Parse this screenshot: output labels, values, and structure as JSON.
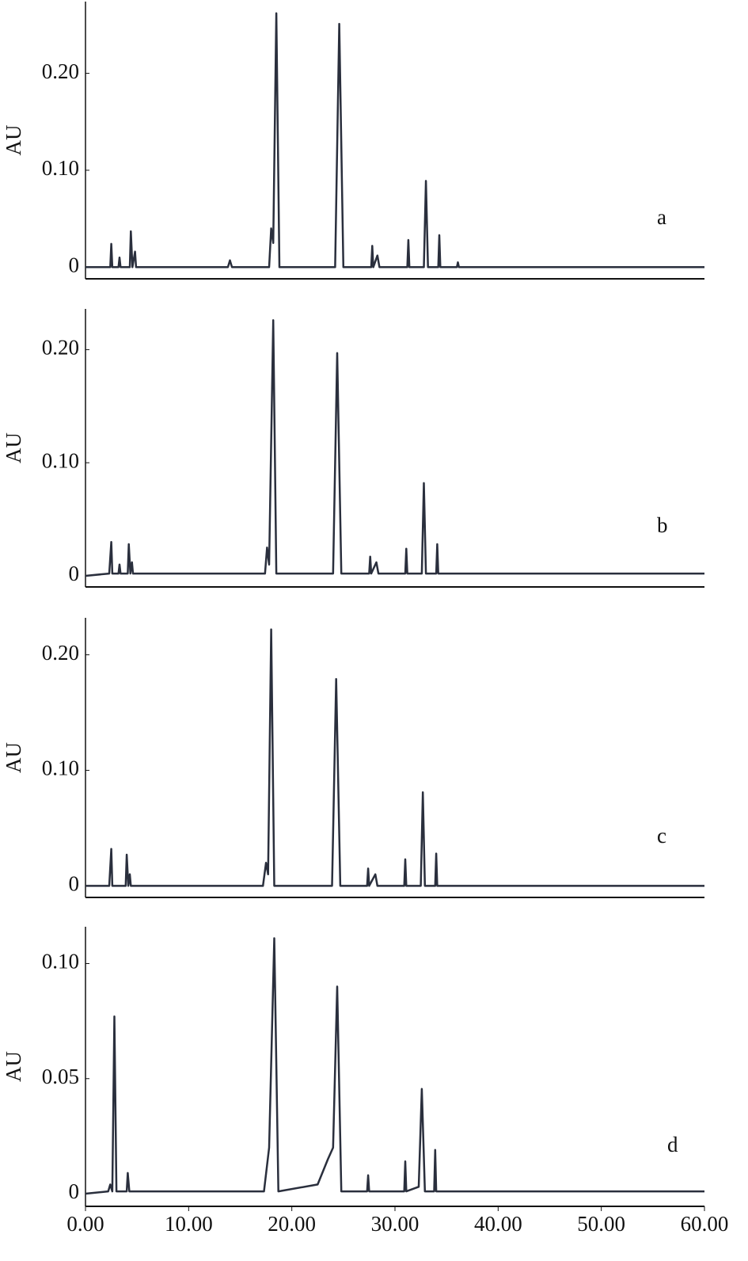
{
  "chart_data": [
    {
      "type": "line",
      "y_label": "AU",
      "annotation": "a",
      "color": "#2a2f3d",
      "xlim": [
        0,
        60
      ],
      "ylim": [
        -0.012,
        0.274
      ],
      "yticks": [
        0,
        {
          "value": 0.1,
          "label": "0.10"
        },
        {
          "value": 0.2,
          "label": "0.20"
        }
      ],
      "x": [
        0,
        2.4,
        2.5,
        2.6,
        3.2,
        3.3,
        3.4,
        4.3,
        4.4,
        4.55,
        4.8,
        4.9,
        13.8,
        14,
        14.2,
        17.8,
        18.0,
        18.2,
        18.5,
        18.8,
        24.2,
        24.6,
        25,
        27.7,
        27.8,
        27.9,
        28.3,
        28.5,
        31.2,
        31.3,
        31.4,
        32.8,
        33.0,
        33.2,
        34.2,
        34.3,
        34.4,
        36,
        36.1,
        36.2,
        60
      ],
      "values": [
        0,
        0,
        0.024,
        0,
        0,
        0.01,
        0,
        0,
        0.037,
        0,
        0.016,
        0,
        0,
        0.007,
        0,
        0,
        0.04,
        0.025,
        0.262,
        0,
        0,
        0.251,
        0,
        0,
        0.022,
        0,
        0.012,
        0,
        0,
        0.028,
        0,
        0,
        0.089,
        0,
        0,
        0.033,
        0,
        0,
        0.005,
        0,
        0
      ]
    },
    {
      "type": "line",
      "y_label": "AU",
      "annotation": "b",
      "color": "#2a2f3d",
      "xlim": [
        0,
        60
      ],
      "ylim": [
        -0.0098,
        0.236
      ],
      "yticks": [
        0,
        {
          "value": 0.1,
          "label": "0.10"
        },
        {
          "value": 0.2,
          "label": "0.20"
        }
      ],
      "x": [
        0,
        2.3,
        2.5,
        2.6,
        3.2,
        3.3,
        3.4,
        4.1,
        4.2,
        4.35,
        4.5,
        4.6,
        17.4,
        17.6,
        17.8,
        18.2,
        18.5,
        24.0,
        24.4,
        24.8,
        27.5,
        27.6,
        27.7,
        28.2,
        28.4,
        31.0,
        31.1,
        31.2,
        32.6,
        32.8,
        33.0,
        34.0,
        34.1,
        34.2,
        60
      ],
      "values": [
        0,
        0.002,
        0.03,
        0.002,
        0.002,
        0.01,
        0.002,
        0.002,
        0.028,
        0.002,
        0.012,
        0.002,
        0.002,
        0.025,
        0.01,
        0.226,
        0.002,
        0.002,
        0.197,
        0.002,
        0.002,
        0.017,
        0.002,
        0.012,
        0.002,
        0.002,
        0.024,
        0.002,
        0.002,
        0.082,
        0.002,
        0.002,
        0.028,
        0.002,
        0.002
      ]
    },
    {
      "type": "line",
      "y_label": "AU",
      "annotation": "c",
      "color": "#2a2f3d",
      "xlim": [
        0,
        60
      ],
      "ylim": [
        -0.01,
        0.232
      ],
      "yticks": [
        0,
        {
          "value": 0.1,
          "label": "0.10"
        },
        {
          "value": 0.2,
          "label": "0.20"
        }
      ],
      "x": [
        0,
        2.3,
        2.5,
        2.6,
        3.9,
        4.0,
        4.15,
        4.3,
        4.4,
        17.2,
        17.5,
        17.7,
        18.0,
        18.3,
        23.9,
        24.3,
        24.7,
        27.3,
        27.4,
        27.5,
        28.1,
        28.3,
        30.9,
        31.0,
        31.1,
        32.5,
        32.7,
        32.9,
        33.9,
        34.0,
        34.1,
        60
      ],
      "values": [
        0,
        0,
        0.032,
        0,
        0,
        0.027,
        0,
        0.01,
        0,
        0,
        0.02,
        0.01,
        0.222,
        0,
        0,
        0.179,
        0,
        0,
        0.015,
        0,
        0.01,
        0,
        0,
        0.023,
        0,
        0,
        0.081,
        0,
        0,
        0.028,
        0,
        0
      ]
    },
    {
      "type": "line",
      "y_label": "AU",
      "annotation": "d",
      "color": "#2a2f3d",
      "xlim": [
        0,
        60
      ],
      "ylim": [
        -0.0055,
        0.116
      ],
      "xticks": [
        {
          "value": 0,
          "label": "0.00"
        },
        {
          "value": 10,
          "label": "10.00"
        },
        {
          "value": 20,
          "label": "20.00"
        },
        {
          "value": 30,
          "label": "30.00"
        },
        {
          "value": 40,
          "label": "40.00"
        },
        {
          "value": 50,
          "label": "50.00"
        },
        {
          "value": 60,
          "label": "60.00"
        }
      ],
      "yticks": [
        0,
        {
          "value": 0.05,
          "label": "0.05"
        },
        {
          "value": 0.1,
          "label": "0.10"
        }
      ],
      "x": [
        0,
        2.2,
        2.4,
        2.6,
        2.8,
        3.0,
        4.0,
        4.1,
        4.25,
        17.3,
        17.8,
        18.3,
        18.7,
        22.5,
        23.5,
        24.0,
        24.4,
        24.8,
        27.3,
        27.4,
        27.5,
        30.9,
        31.0,
        31.1,
        32.3,
        32.6,
        32.9,
        33.8,
        33.9,
        34.0,
        60
      ],
      "values": [
        0,
        0.001,
        0.004,
        0.001,
        0.077,
        0.001,
        0.001,
        0.009,
        0.001,
        0.001,
        0.02,
        0.111,
        0.001,
        0.004,
        0.015,
        0.02,
        0.09,
        0.001,
        0.001,
        0.008,
        0.001,
        0.001,
        0.014,
        0.001,
        0.003,
        0.0455,
        0.001,
        0.001,
        0.019,
        0.001,
        0.001
      ]
    }
  ]
}
